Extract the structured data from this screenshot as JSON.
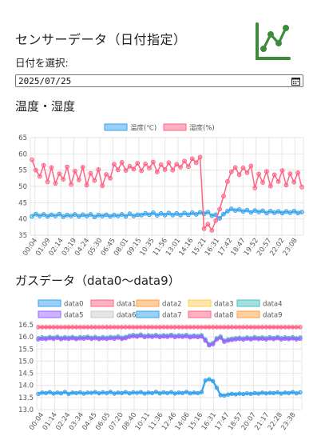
{
  "header": {
    "title": "センサーデータ（日付指定）",
    "date_label": "日付を選択:",
    "date_value": "2025/07/25"
  },
  "colors": {
    "green_logo": "#3c8c3c",
    "temp": "#36a2eb",
    "humid": "#ff6384"
  },
  "icons": {
    "logo": "line-chart-icon",
    "calendar": "calendar-icon"
  },
  "chart_data": [
    {
      "type": "line",
      "title": "温度・湿度",
      "ylim": [
        35,
        65
      ],
      "yticks": [
        35,
        40,
        45,
        50,
        55,
        60,
        65
      ],
      "xticks": [
        "00:04",
        "01:09",
        "02:14",
        "03:19",
        "04:24",
        "05:30",
        "06:45",
        "08:01",
        "09:15",
        "10:35",
        "11:56",
        "13:01",
        "14:16",
        "15:21",
        "16:31",
        "17:42",
        "18:47",
        "19:52",
        "20:57",
        "22:02",
        "23:08"
      ],
      "grid": true,
      "legend": "top",
      "series": [
        {
          "name": "温度(℃)",
          "color": "#36a2eb",
          "values": [
            40.8,
            41.5,
            40.9,
            41.4,
            40.8,
            41.3,
            40.9,
            41.5,
            40.7,
            41.2,
            40.9,
            41.4,
            40.8,
            41.3,
            40.9,
            41.4,
            40.6,
            41.2,
            40.9,
            41.3,
            40.8,
            41.2,
            40.9,
            41.4,
            40.8,
            41.6,
            40.9,
            41.3,
            41.2,
            41.7,
            41.3,
            41.9,
            41.1,
            41.7,
            41.2,
            41.8,
            41.2,
            41.7,
            41.2,
            41.8,
            41.3,
            41.9,
            41.4,
            42.0,
            41.6,
            42.1,
            41.0,
            41.3,
            40.2,
            41.5,
            42.4,
            43.1,
            42.6,
            42.9,
            42.3,
            42.7,
            42.0,
            42.6,
            42.1,
            42.5,
            41.8,
            42.4,
            41.9,
            42.3,
            41.8,
            42.3,
            41.9,
            42.4,
            41.8,
            42.1
          ]
        },
        {
          "name": "湿度(%)",
          "color": "#ff6384",
          "values": [
            58.2,
            55.0,
            53.1,
            56.5,
            51.4,
            55.8,
            50.9,
            53.9,
            52.2,
            56.0,
            50.6,
            54.7,
            52.0,
            55.9,
            50.4,
            54.0,
            51.8,
            55.2,
            50.2,
            53.7,
            52.5,
            56.8,
            55.1,
            57.4,
            54.9,
            56.2,
            55.3,
            57.1,
            54.8,
            56.9,
            55.6,
            57.5,
            54.4,
            56.7,
            55.2,
            57.3,
            55.0,
            56.8,
            55.9,
            57.8,
            56.1,
            58.5,
            57.3,
            59.0,
            37.0,
            38.4,
            36.5,
            39.5,
            43.0,
            47.0,
            51.5,
            54.5,
            55.8,
            53.6,
            55.7,
            54.2,
            56.3,
            49.5,
            53.8,
            51.2,
            54.6,
            50.1,
            53.6,
            51.5,
            54.9,
            50.4,
            53.9,
            51.3,
            54.2,
            49.8
          ]
        }
      ]
    },
    {
      "type": "line",
      "title": "ガスデータ（data0〜data9）",
      "ylim": [
        13.0,
        16.5
      ],
      "yticks": [
        13.0,
        13.5,
        14.0,
        14.5,
        15.0,
        15.5,
        16.0,
        16.5
      ],
      "xticks": [
        "00:04",
        "01:14",
        "02:24",
        "03:34",
        "04:45",
        "06:05",
        "07:20",
        "08:40",
        "10:11",
        "11:36",
        "12:46",
        "14:06",
        "15:16",
        "16:31",
        "17:47",
        "18:57",
        "20:07",
        "21:17",
        "22:28",
        "23:38"
      ],
      "grid": true,
      "legend": "top",
      "series": [
        {
          "name": "data0",
          "color": "#36a2eb",
          "values": [
            13.65,
            13.7,
            13.68,
            13.72,
            13.66,
            13.7,
            13.67,
            13.73,
            13.65,
            13.7,
            13.68,
            13.71,
            13.66,
            13.7,
            13.69,
            13.72,
            13.67,
            13.71,
            13.68,
            13.73,
            13.66,
            13.7,
            13.68,
            13.72,
            13.67,
            13.71,
            13.69,
            13.72,
            13.66,
            13.7,
            13.68,
            13.73,
            13.67,
            13.71,
            13.68,
            13.72,
            13.66,
            13.7,
            13.68,
            13.73,
            13.67,
            13.7,
            13.68,
            13.72,
            14.2,
            14.25,
            14.18,
            13.9,
            13.6,
            13.58,
            13.62,
            13.65,
            13.63,
            13.66,
            13.64,
            13.67,
            13.65,
            13.68,
            13.66,
            13.7,
            13.67,
            13.69,
            13.68,
            13.71,
            13.66,
            13.7,
            13.68,
            13.72,
            13.67,
            13.71
          ]
        },
        {
          "name": "data1",
          "color": "#ff6384",
          "values": [
            16.4,
            16.4,
            16.4,
            16.4,
            16.4,
            16.4,
            16.4,
            16.4,
            16.4,
            16.4,
            16.4,
            16.4,
            16.4,
            16.4,
            16.4,
            16.4,
            16.4,
            16.4,
            16.4,
            16.4,
            16.4,
            16.4,
            16.4,
            16.4,
            16.4,
            16.4,
            16.4,
            16.4,
            16.4,
            16.4,
            16.4,
            16.4,
            16.4,
            16.4,
            16.4,
            16.4,
            16.4,
            16.4,
            16.4,
            16.4,
            16.4,
            16.4,
            16.4,
            16.4,
            16.4,
            16.4,
            16.4,
            16.4,
            16.4,
            16.4,
            16.4,
            16.4,
            16.4,
            16.4,
            16.4,
            16.4,
            16.4,
            16.4,
            16.4,
            16.4,
            16.4,
            16.4,
            16.4,
            16.4,
            16.4,
            16.4,
            16.4,
            16.4,
            16.4,
            16.4
          ]
        },
        {
          "name": "data2",
          "color": "#ff9f40",
          "values": []
        },
        {
          "name": "data3",
          "color": "#ffcd56",
          "values": []
        },
        {
          "name": "data4",
          "color": "#4bc0c0",
          "values": [
            15.95,
            15.98,
            15.96,
            16.0,
            15.97,
            16.01,
            15.96,
            15.99,
            15.97,
            16.0,
            15.96,
            15.99,
            15.98,
            16.01,
            15.97,
            16.0,
            15.96,
            15.99,
            15.97,
            16.0,
            15.98,
            16.02,
            15.97,
            16.0,
            16.05,
            16.08,
            16.06,
            16.1,
            16.04,
            16.07,
            16.05,
            16.08,
            16.04,
            16.07,
            16.05,
            16.09,
            16.04,
            16.07,
            16.05,
            16.08,
            16.03,
            16.06,
            16.04,
            16.07,
            15.9,
            15.7,
            15.75,
            15.95,
            16.02,
            15.85,
            15.9,
            15.93,
            15.95,
            15.97,
            15.94,
            15.98,
            15.95,
            15.99,
            15.96,
            15.98,
            15.95,
            15.99,
            15.96,
            16.0,
            15.95,
            15.98,
            15.96,
            15.99,
            15.95,
            15.98
          ]
        },
        {
          "name": "data5",
          "color": "#9966ff",
          "values": [
            15.9,
            15.93,
            15.91,
            15.95,
            15.92,
            15.96,
            15.91,
            15.94,
            15.92,
            15.95,
            15.91,
            15.94,
            15.93,
            15.96,
            15.92,
            15.95,
            15.91,
            15.94,
            15.92,
            15.95,
            15.93,
            15.97,
            15.92,
            15.95,
            16.0,
            16.03,
            16.01,
            16.05,
            15.99,
            16.02,
            16.0,
            16.03,
            15.99,
            16.02,
            16.0,
            16.04,
            15.99,
            16.02,
            16.0,
            16.03,
            15.98,
            16.01,
            15.99,
            16.02,
            15.85,
            15.65,
            15.7,
            15.9,
            15.97,
            15.8,
            15.85,
            15.88,
            15.9,
            15.92,
            15.89,
            15.93,
            15.9,
            15.94,
            15.91,
            15.93,
            15.9,
            15.94,
            15.91,
            15.95,
            15.9,
            15.93,
            15.91,
            15.94,
            15.9,
            15.93
          ]
        },
        {
          "name": "data6",
          "color": "#c9cbcf",
          "values": []
        },
        {
          "name": "data7",
          "color": "#36a2eb",
          "values": []
        },
        {
          "name": "data8",
          "color": "#ff6384",
          "values": []
        },
        {
          "name": "data9",
          "color": "#ff9f40",
          "values": []
        }
      ]
    }
  ]
}
